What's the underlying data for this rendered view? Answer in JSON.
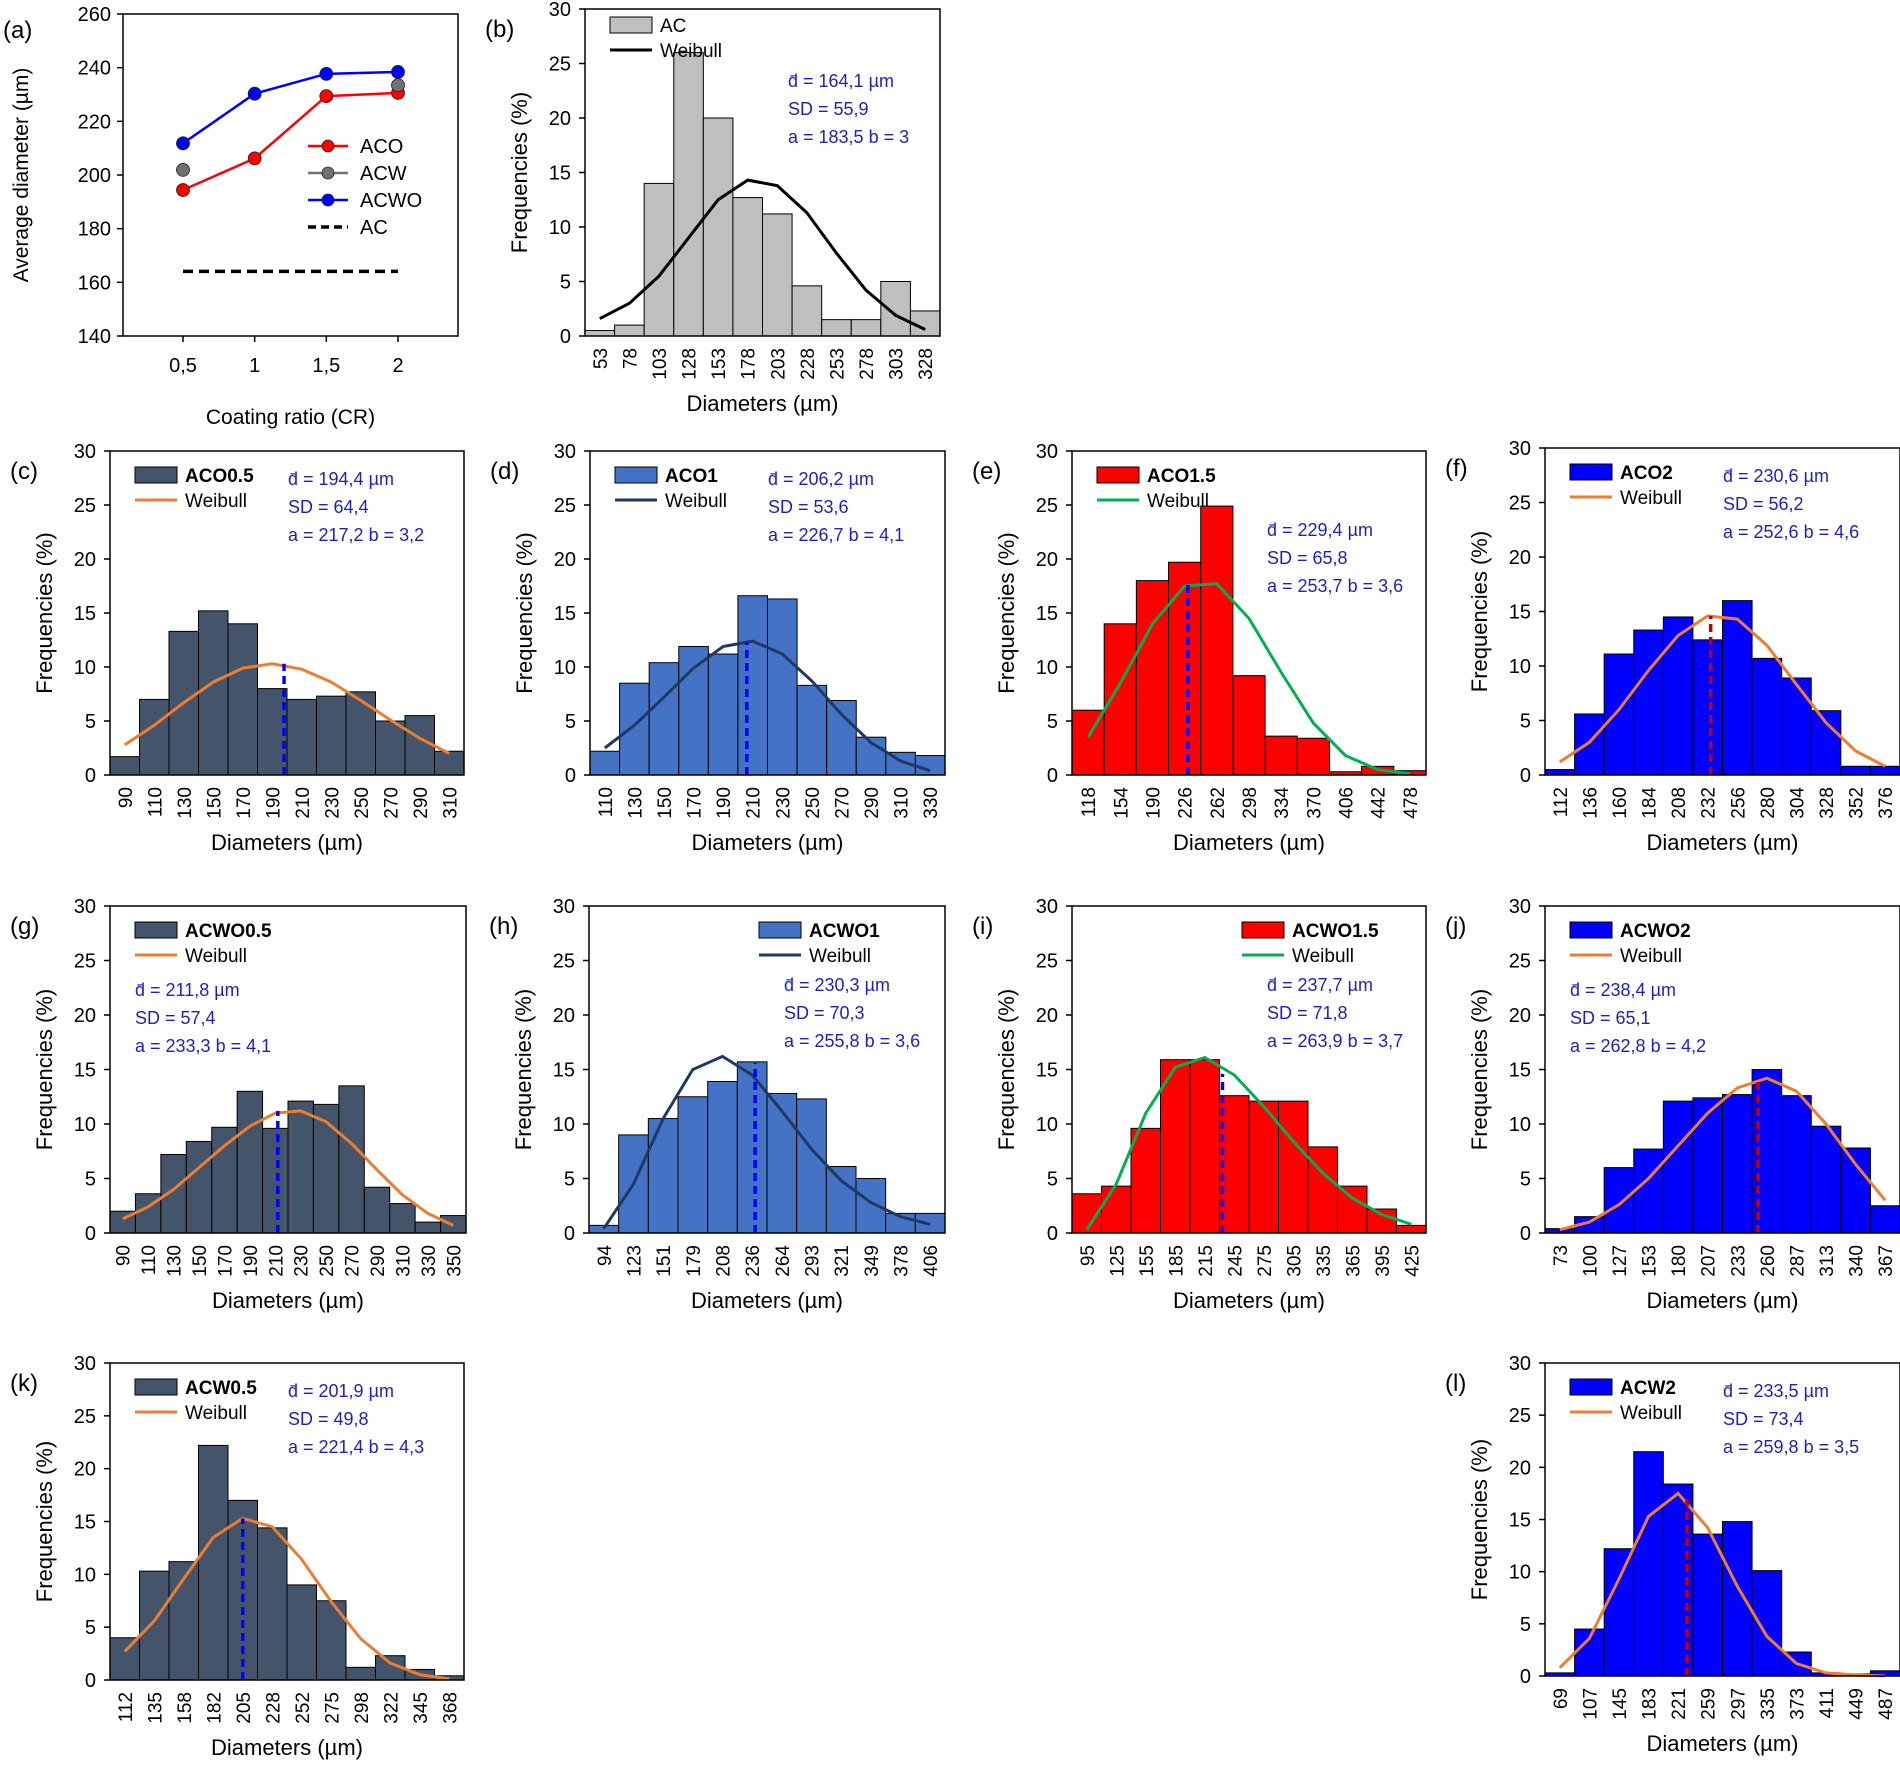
{
  "figure": {
    "name": "coating-ratio-diameter-distributions",
    "colors": {
      "gray_bar": "#bfbfbf",
      "navy_bar": "#44546a",
      "steel_bar": "#4472c4",
      "red_bar": "#ff0000",
      "blue_bar": "#0000ff",
      "orange_fit": "#ed7d31",
      "dark_fit": "#203864",
      "green_fit": "#00b050",
      "black_fit": "#000000",
      "stat_text": "#1f1fbf"
    }
  },
  "chart_data": [
    {
      "id": "a",
      "panel_label": "(a)",
      "type": "line",
      "xlabel": "Coating ratio (CR)",
      "ylabel": "Average diameter (µm)",
      "categories": [
        "0,5",
        "1",
        "1,5",
        "2"
      ],
      "ylim": [
        140,
        260
      ],
      "yticks": [
        "140",
        "160",
        "180",
        "200",
        "220",
        "240",
        "260"
      ],
      "series": [
        {
          "name": "ACO",
          "values": [
            194.4,
            206.2,
            229.4,
            230.6
          ],
          "color": "#ff0000",
          "style": "line"
        },
        {
          "name": "ACW",
          "values": [
            201.9,
            null,
            null,
            233.5
          ],
          "color": "#707070",
          "style": "points"
        },
        {
          "name": "ACWO",
          "values": [
            211.8,
            230.3,
            237.7,
            238.4
          ],
          "color": "#0000ff",
          "style": "line"
        },
        {
          "name": "AC",
          "values": [
            164.1,
            164.1,
            164.1,
            164.1
          ],
          "color": "#000000",
          "style": "dashed"
        }
      ]
    },
    {
      "id": "b",
      "panel_label": "(b)",
      "type": "bar",
      "name": "AC",
      "name_bold": false,
      "categories": [
        "53",
        "78",
        "103",
        "128",
        "153",
        "178",
        "203",
        "228",
        "253",
        "278",
        "303",
        "328"
      ],
      "values": [
        0.5,
        1.0,
        14.0,
        26.0,
        20.0,
        12.7,
        11.2,
        4.6,
        1.5,
        1.5,
        5.0,
        2.3
      ],
      "curve": [
        1.6,
        3.0,
        5.5,
        9.0,
        12.5,
        14.3,
        13.8,
        11.3,
        7.6,
        4.2,
        1.9,
        0.6
      ],
      "bar_color": "#bfbfbf",
      "curve_color": "#000000",
      "curve_name": "Weibull",
      "ylim": [
        0,
        30
      ],
      "yticks": [
        "0",
        "5",
        "10",
        "15",
        "20",
        "25",
        "30"
      ],
      "xlabel": "Diameters (µm)",
      "ylabel": "Frequencies (%)",
      "stats": [
        "d̄ = 164,1 µm",
        "SD = 55,9",
        "a = 183,5  b = 3"
      ]
    },
    {
      "id": "c",
      "panel_label": "(c)",
      "type": "bar",
      "name": "ACO0.5",
      "name_bold": true,
      "categories": [
        "90",
        "110",
        "130",
        "150",
        "170",
        "190",
        "210",
        "230",
        "250",
        "270",
        "290",
        "310"
      ],
      "values": [
        1.7,
        7.0,
        13.3,
        15.2,
        14.0,
        8.0,
        7.0,
        7.3,
        7.7,
        5.0,
        5.5,
        2.2
      ],
      "curve": [
        2.8,
        4.6,
        6.7,
        8.6,
        9.9,
        10.3,
        9.8,
        8.6,
        6.9,
        5.1,
        3.4,
        2.0
      ],
      "bar_color": "#44546a",
      "curve_color": "#ed7d31",
      "curve_name": "Weibull",
      "mean_index": 5.4,
      "mean_color": "#0000ff",
      "mean_value": 10.3,
      "ylim": [
        0,
        30
      ],
      "yticks": [
        "0",
        "5",
        "10",
        "15",
        "20",
        "25",
        "30"
      ],
      "xlabel": "Diameters (µm)",
      "ylabel": "Frequencies (%)",
      "stats": [
        "d̄ = 194,4 µm",
        "SD = 64,4",
        "a = 217,2  b = 3,2"
      ]
    },
    {
      "id": "d",
      "panel_label": "(d)",
      "type": "bar",
      "name": "ACO1",
      "name_bold": true,
      "categories": [
        "110",
        "130",
        "150",
        "170",
        "190",
        "210",
        "230",
        "250",
        "270",
        "290",
        "310",
        "330"
      ],
      "values": [
        2.2,
        8.5,
        10.4,
        11.9,
        11.2,
        16.6,
        16.3,
        8.3,
        6.9,
        3.5,
        2.1,
        1.8
      ],
      "curve": [
        2.5,
        4.6,
        7.2,
        9.9,
        11.9,
        12.4,
        11.2,
        8.7,
        5.6,
        3.0,
        1.3,
        0.4
      ],
      "bar_color": "#4472c4",
      "curve_color": "#203864",
      "curve_name": "Weibull",
      "mean_index": 4.8,
      "mean_color": "#0000ff",
      "mean_value": 12.3,
      "ylim": [
        0,
        30
      ],
      "yticks": [
        "0",
        "5",
        "10",
        "15",
        "20",
        "25",
        "30"
      ],
      "xlabel": "Diameters (µm)",
      "ylabel": "Frequencies (%)",
      "stats": [
        "d̄ = 206,2 µm",
        "SD = 53,6",
        "a = 226,7  b = 4,1"
      ]
    },
    {
      "id": "e",
      "panel_label": "(e)",
      "type": "bar",
      "name": "ACO1.5",
      "name_bold": true,
      "categories": [
        "118",
        "154",
        "190",
        "226",
        "262",
        "298",
        "334",
        "370",
        "406",
        "442",
        "478"
      ],
      "values": [
        6.0,
        14.0,
        18.0,
        19.7,
        24.9,
        9.2,
        3.6,
        3.4,
        0.3,
        0.8,
        0.4
      ],
      "curve": [
        3.5,
        8.5,
        14.0,
        17.5,
        17.7,
        14.5,
        9.5,
        4.8,
        1.8,
        0.5,
        0.1
      ],
      "bar_color": "#ff0000",
      "curve_color": "#00b050",
      "curve_name": "Weibull",
      "mean_index": 3.1,
      "mean_color": "#0000ff",
      "mean_value": 17.8,
      "ylim": [
        0,
        30
      ],
      "yticks": [
        "0",
        "5",
        "10",
        "15",
        "20",
        "25",
        "30"
      ],
      "xlabel": "Diameters (µm)",
      "ylabel": "Frequencies (%)",
      "stats": [
        "d̄ = 229,4 µm",
        "SD = 65,8",
        "a = 253,7  b = 3,6"
      ]
    },
    {
      "id": "f",
      "panel_label": "(f)",
      "type": "bar",
      "name": "ACO2",
      "name_bold": true,
      "categories": [
        "112",
        "136",
        "160",
        "184",
        "208",
        "232",
        "256",
        "280",
        "304",
        "328",
        "352",
        "376"
      ],
      "values": [
        0.5,
        5.6,
        11.1,
        13.3,
        14.5,
        12.4,
        16.0,
        10.7,
        8.9,
        5.9,
        0.8,
        0.8
      ],
      "curve": [
        1.2,
        3.0,
        6.0,
        9.6,
        12.8,
        14.6,
        14.3,
        11.9,
        8.3,
        4.8,
        2.2,
        0.8
      ],
      "bar_color": "#0000ff",
      "curve_color": "#ed7d31",
      "curve_name": "Weibull",
      "mean_index": 5.1,
      "mean_color": "#c00000",
      "mean_value": 14.6,
      "ylim": [
        0,
        30
      ],
      "yticks": [
        "0",
        "5",
        "10",
        "15",
        "20",
        "25",
        "30"
      ],
      "xlabel": "Diameters (µm)",
      "ylabel": "Frequencies (%)",
      "stats": [
        "d̄ = 230,6 µm",
        "SD = 56,2",
        "a = 252,6 b = 4,6"
      ]
    },
    {
      "id": "g",
      "panel_label": "(g)",
      "type": "bar",
      "name": "ACWO0.5",
      "name_bold": true,
      "categories": [
        "90",
        "110",
        "130",
        "150",
        "170",
        "190",
        "210",
        "230",
        "250",
        "270",
        "290",
        "310",
        "330",
        "350"
      ],
      "values": [
        2.0,
        3.6,
        7.2,
        8.4,
        9.7,
        13.0,
        9.6,
        12.1,
        11.8,
        13.5,
        4.2,
        2.7,
        1.0,
        1.6
      ],
      "curve": [
        1.3,
        2.4,
        4.0,
        6.0,
        8.0,
        9.8,
        11.0,
        11.2,
        10.2,
        8.2,
        5.8,
        3.5,
        1.8,
        0.7
      ],
      "bar_color": "#44546a",
      "curve_color": "#ed7d31",
      "curve_name": "Weibull",
      "mean_index": 6.1,
      "mean_color": "#0000ff",
      "mean_value": 11.2,
      "ylim": [
        0,
        30
      ],
      "yticks": [
        "0",
        "5",
        "10",
        "15",
        "20",
        "25",
        "30"
      ],
      "xlabel": "Diameters (µm)",
      "ylabel": "Frequencies (%)",
      "stats": [
        "d̄ = 211,8 µm",
        "SD = 57,4",
        "a = 233,3  b = 4,1"
      ]
    },
    {
      "id": "h",
      "panel_label": "(h)",
      "type": "bar",
      "name": "ACWO1",
      "name_bold": true,
      "categories": [
        "94",
        "123",
        "151",
        "179",
        "208",
        "236",
        "264",
        "293",
        "321",
        "349",
        "378",
        "406"
      ],
      "values": [
        0.7,
        9.0,
        10.5,
        12.5,
        13.9,
        15.7,
        12.8,
        12.3,
        6.1,
        5.0,
        1.8,
        1.8
      ],
      "curve": [
        0.4,
        4.5,
        10.5,
        15.0,
        16.2,
        14.5,
        11.2,
        7.7,
        4.8,
        2.8,
        1.5,
        0.8
      ],
      "bar_color": "#4472c4",
      "curve_color": "#203864",
      "curve_name": "Weibull",
      "mean_index": 5.1,
      "mean_color": "#0000ff",
      "mean_value": 15.6,
      "ylim": [
        0,
        30
      ],
      "yticks": [
        "0",
        "5",
        "10",
        "15",
        "20",
        "25",
        "30"
      ],
      "xlabel": "Diameters (µm)",
      "ylabel": "Frequencies (%)",
      "stats": [
        "d̄ = 230,3 µm",
        "SD = 70,3",
        "a = 255,8  b = 3,6"
      ]
    },
    {
      "id": "i",
      "panel_label": "(i)",
      "type": "bar",
      "name": "ACWO1.5",
      "name_bold": true,
      "categories": [
        "95",
        "125",
        "155",
        "185",
        "215",
        "245",
        "275",
        "305",
        "335",
        "365",
        "395",
        "425"
      ],
      "values": [
        3.6,
        4.3,
        9.6,
        15.9,
        15.9,
        12.6,
        12.1,
        12.1,
        7.9,
        4.3,
        2.2,
        0.7
      ],
      "curve": [
        0.3,
        4.5,
        11.0,
        15.2,
        16.1,
        14.5,
        11.6,
        8.4,
        5.5,
        3.2,
        1.7,
        0.8
      ],
      "bar_color": "#ff0000",
      "curve_color": "#00b050",
      "curve_name": "Weibull",
      "mean_index": 4.6,
      "mean_color": "#0000ff",
      "mean_value": 14.6,
      "ylim": [
        0,
        30
      ],
      "yticks": [
        "0",
        "5",
        "10",
        "15",
        "20",
        "25",
        "30"
      ],
      "xlabel": "Diameters (µm)",
      "ylabel": "Frequencies (%)",
      "stats": [
        "d̄ = 237,7 µm",
        "SD = 71,8",
        "a = 263,9  b = 3,7"
      ]
    },
    {
      "id": "j",
      "panel_label": "(j)",
      "type": "bar",
      "name": "ACWO2",
      "name_bold": true,
      "categories": [
        "73",
        "100",
        "127",
        "153",
        "180",
        "207",
        "233",
        "260",
        "287",
        "313",
        "340",
        "367"
      ],
      "values": [
        0.4,
        1.5,
        6.0,
        7.7,
        12.1,
        12.4,
        12.7,
        15.0,
        12.6,
        9.8,
        7.8,
        2.5
      ],
      "curve": [
        0.3,
        1.0,
        2.6,
        5.0,
        8.0,
        11.0,
        13.3,
        14.2,
        13.0,
        10.0,
        6.3,
        3.0
      ],
      "bar_color": "#0000ff",
      "curve_color": "#ed7d31",
      "curve_name": "Weibull",
      "mean_index": 6.7,
      "mean_color": "#c00000",
      "mean_value": 14.2,
      "ylim": [
        0,
        30
      ],
      "yticks": [
        "0",
        "5",
        "10",
        "15",
        "20",
        "25",
        "30"
      ],
      "xlabel": "Diameters (µm)",
      "ylabel": "Frequencies (%)",
      "stats": [
        "d̄ = 238,4 µm",
        "SD = 65,1",
        "a = 262,8 b = 4,2"
      ]
    },
    {
      "id": "k",
      "panel_label": "(k)",
      "type": "bar",
      "name": "ACW0.5",
      "name_bold": true,
      "categories": [
        "112",
        "135",
        "158",
        "182",
        "205",
        "228",
        "252",
        "275",
        "298",
        "322",
        "345",
        "368"
      ],
      "values": [
        4.0,
        10.3,
        11.2,
        22.2,
        17.0,
        14.4,
        9.0,
        7.5,
        1.2,
        2.3,
        1.0,
        0.4
      ],
      "curve": [
        2.7,
        5.6,
        9.6,
        13.5,
        15.3,
        14.5,
        11.4,
        7.4,
        3.9,
        1.6,
        0.5,
        0.1
      ],
      "bar_color": "#44546a",
      "curve_color": "#ed7d31",
      "curve_name": "Weibull",
      "mean_index": 4.0,
      "mean_color": "#0000ff",
      "mean_value": 15.3,
      "ylim": [
        0,
        30
      ],
      "yticks": [
        "0",
        "5",
        "10",
        "15",
        "20",
        "25",
        "30"
      ],
      "xlabel": "Diameters (µm)",
      "ylabel": "Frequencies (%)",
      "stats": [
        "d̄ = 201,9 µm",
        "SD = 49,8",
        "a = 221,4  b = 4,3"
      ]
    },
    {
      "id": "l",
      "panel_label": "(l)",
      "type": "bar",
      "name": "ACW2",
      "name_bold": true,
      "categories": [
        "69",
        "107",
        "145",
        "183",
        "221",
        "259",
        "297",
        "335",
        "373",
        "411",
        "449",
        "487"
      ],
      "values": [
        0.3,
        4.5,
        12.2,
        21.5,
        18.4,
        13.6,
        14.8,
        10.1,
        2.3,
        0.3,
        0.2,
        0.5
      ],
      "curve": [
        0.8,
        3.6,
        9.3,
        15.3,
        17.5,
        14.2,
        8.6,
        3.8,
        1.2,
        0.3,
        0.1,
        0.0
      ],
      "bar_color": "#0000ff",
      "curve_color": "#ed7d31",
      "curve_name": "Weibull",
      "mean_index": 4.3,
      "mean_color": "#c00000",
      "mean_value": 17.5,
      "ylim": [
        0,
        30
      ],
      "yticks": [
        "0",
        "5",
        "10",
        "15",
        "20",
        "25",
        "30"
      ],
      "xlabel": "Diameters (µm)",
      "ylabel": "Frequencies (%)",
      "stats": [
        "d̄ = 233,5 µm",
        "SD = 73,4",
        "a = 259,8 b = 3,5"
      ]
    }
  ]
}
